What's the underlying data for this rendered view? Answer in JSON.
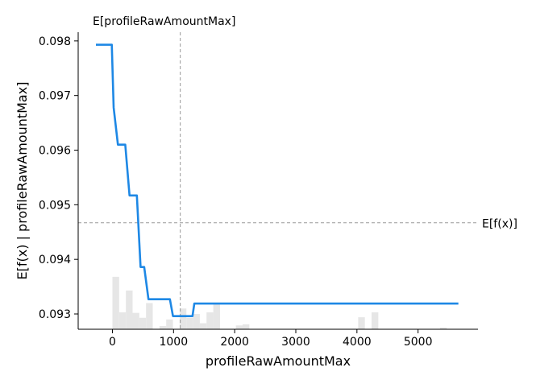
{
  "chart_data": {
    "type": "line",
    "xlabel": "profileRawAmountMax",
    "ylabel": "E[f(x) | profileRawAmountMax]",
    "xlim": [
      -560,
      5980
    ],
    "ylim": [
      0.09272,
      0.09816
    ],
    "x_ticks": [
      0,
      1000,
      2000,
      3000,
      4000,
      5000
    ],
    "y_ticks": [
      0.093,
      0.094,
      0.095,
      0.096,
      0.097,
      0.098
    ],
    "y_tick_labels": [
      "0.093",
      "0.094",
      "0.095",
      "0.096",
      "0.097",
      "0.098"
    ],
    "grid": false,
    "series": [
      {
        "color": "#1E88E5",
        "x": [
          -270,
          -10,
          20,
          90,
          210,
          280,
          400,
          460,
          520,
          590,
          940,
          990,
          1310,
          1340,
          1380,
          5660
        ],
        "y": [
          0.09793,
          0.09793,
          0.09678,
          0.0961,
          0.0961,
          0.09517,
          0.09517,
          0.09386,
          0.09386,
          0.09327,
          0.09327,
          0.09296,
          0.09296,
          0.09319,
          0.09319,
          0.09319
        ]
      }
    ],
    "histogram": {
      "color": "#e6e6e6",
      "bin_width": 110,
      "bins": [
        {
          "x": 0,
          "h": 0.09368
        },
        {
          "x": 110,
          "h": 0.09303
        },
        {
          "x": 220,
          "h": 0.09343
        },
        {
          "x": 330,
          "h": 0.09302
        },
        {
          "x": 440,
          "h": 0.09293
        },
        {
          "x": 550,
          "h": 0.0932
        },
        {
          "x": 770,
          "h": 0.09278
        },
        {
          "x": 880,
          "h": 0.0929
        },
        {
          "x": 1100,
          "h": 0.0931
        },
        {
          "x": 1210,
          "h": 0.09293
        },
        {
          "x": 1320,
          "h": 0.093
        },
        {
          "x": 1430,
          "h": 0.09283
        },
        {
          "x": 1540,
          "h": 0.09303
        },
        {
          "x": 1650,
          "h": 0.0932
        },
        {
          "x": 2020,
          "h": 0.09279
        },
        {
          "x": 2130,
          "h": 0.09281
        },
        {
          "x": 4020,
          "h": 0.09294
        },
        {
          "x": 4240,
          "h": 0.09303
        },
        {
          "x": 5360,
          "h": 0.09275
        }
      ]
    },
    "expected_x": 1110,
    "expected_fx": 0.09467,
    "annotations": {
      "expected_x_label": "E[profileRawAmountMax]",
      "expected_fx_label": "E[f(x)]"
    },
    "reference_line_color": "#999999"
  }
}
